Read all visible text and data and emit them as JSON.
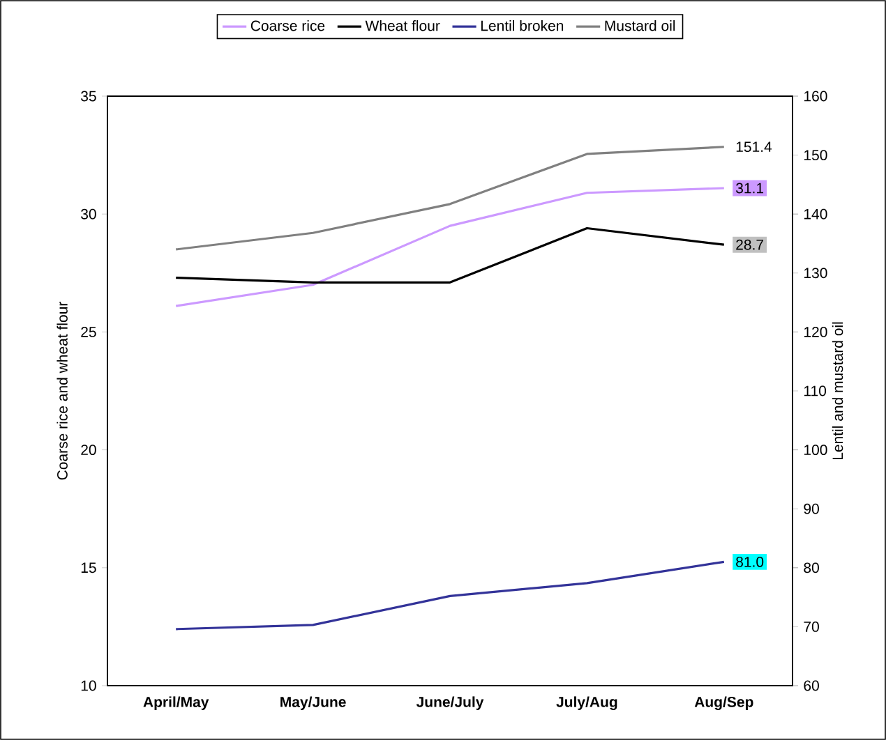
{
  "chart_data": {
    "type": "line",
    "ylabel": "Coarse rice and wheat flour",
    "y2label": "Lentil and mustard oil",
    "categories": [
      "April/May",
      "May/June",
      "June/July",
      "July/Aug",
      "Aug/Sep"
    ],
    "series": [
      {
        "name": "Coarse rice",
        "color": "#cc99ff",
        "values": [
          26.1,
          27.0,
          29.5,
          30.9,
          31.1
        ],
        "value_labels": [
          null,
          null,
          null,
          null,
          "31.1"
        ]
      },
      {
        "name": "Wheat flour",
        "color": "#000000",
        "values": [
          27.3,
          27.1,
          27.1,
          29.4,
          28.7
        ],
        "value_labels": [
          null,
          null,
          null,
          null,
          "28.7"
        ]
      },
      {
        "name": "Lentil broken",
        "color": "#333399",
        "axis": "y2",
        "values": [
          69.6,
          70.3,
          75.2,
          77.4,
          81.0
        ],
        "value_labels": [
          null,
          null,
          null,
          null,
          "81.0"
        ]
      },
      {
        "name": "Mustard oil",
        "color": "#808080",
        "axis": "y2",
        "values": [
          134.0,
          136.8,
          141.7,
          150.2,
          151.4
        ],
        "value_labels": [
          null,
          null,
          null,
          null,
          "151.4"
        ]
      }
    ],
    "ylim": [
      10,
      35
    ],
    "yticks": [
      10,
      15,
      20,
      25,
      30,
      35
    ],
    "y2lim": [
      60,
      160
    ],
    "y2ticks": [
      60,
      70,
      80,
      90,
      100,
      110,
      120,
      130,
      140,
      150,
      160
    ],
    "grid": false,
    "legend": "top",
    "marker": "none",
    "line_style": "solid"
  }
}
